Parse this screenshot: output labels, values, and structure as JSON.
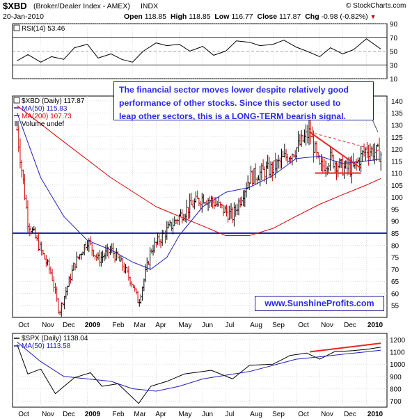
{
  "header": {
    "symbol": "$XBD",
    "name": "(Broker/Dealer Index - AMEX)",
    "exchange": "INDX",
    "credit": "© StockCharts.com",
    "date": "20-Jan-2010",
    "open_label": "Open",
    "open": "118.85",
    "high_label": "High",
    "high": "118.85",
    "low_label": "Low",
    "low": "116.77",
    "close_label": "Close",
    "close": "117.87",
    "chg_label": "Chg",
    "chg": "-0.98 (-0.82%)",
    "chg_icon": "down-triangle-icon",
    "down_color": "#cc0000"
  },
  "annotation": {
    "callout_lines": [
      "The financial sector moves lower despite relatively good",
      "performance of other stocks. Since this sector used to",
      "leap other sectors, this is a LONG-TERM bearish signal."
    ],
    "website": "www.SunshineProfits.com",
    "text_color": "#2a2aee"
  },
  "chart_data": [
    {
      "type": "line",
      "panel": "RSI",
      "legend": [
        {
          "label": "RSI(14) 53.46",
          "color": "#000000"
        }
      ],
      "y_ticks": [
        "90",
        "70",
        "50",
        "30",
        "10"
      ],
      "ylim": [
        10,
        90
      ],
      "reference_lines": [
        70,
        30
      ],
      "series": [
        {
          "name": "RSI(14)",
          "color": "#000000",
          "x": [
            "2008-10-01",
            "2008-10-15",
            "2008-11-01",
            "2008-11-15",
            "2008-12-01",
            "2008-12-15",
            "2009-01-01",
            "2009-01-15",
            "2009-02-01",
            "2009-02-15",
            "2009-03-01",
            "2009-03-15",
            "2009-04-01",
            "2009-04-15",
            "2009-05-01",
            "2009-05-15",
            "2009-06-01",
            "2009-06-15",
            "2009-07-01",
            "2009-07-15",
            "2009-08-01",
            "2009-08-15",
            "2009-09-01",
            "2009-09-15",
            "2009-10-01",
            "2009-10-15",
            "2009-11-01",
            "2009-11-15",
            "2009-12-01",
            "2009-12-15",
            "2010-01-01",
            "2010-01-20"
          ],
          "values": [
            36,
            45,
            34,
            42,
            38,
            55,
            60,
            40,
            46,
            38,
            34,
            50,
            62,
            58,
            60,
            50,
            57,
            44,
            50,
            65,
            63,
            58,
            60,
            66,
            56,
            50,
            42,
            55,
            46,
            52,
            68,
            53
          ]
        }
      ]
    },
    {
      "type": "ohlc",
      "panel": "XBD",
      "legend": [
        {
          "label": "$XBD (Daily) 117.87",
          "color": "#000000"
        },
        {
          "label": "MA(50) 115.83",
          "color": "#1f1fb8"
        },
        {
          "label": "MA(200) 107.73",
          "color": "#dd0000"
        },
        {
          "label": "Volume undef",
          "color": "#000000"
        }
      ],
      "x_ticks": [
        "Oct",
        "Nov",
        "Dec",
        "2009",
        "Feb",
        "Mar",
        "Apr",
        "May",
        "Jun",
        "Jul",
        "Aug",
        "Sep",
        "Oct",
        "Nov",
        "Dec",
        "2010"
      ],
      "y_ticks": [
        "140",
        "135",
        "130",
        "125",
        "120",
        "115",
        "110",
        "105",
        "100",
        "95",
        "90",
        "85",
        "80",
        "75",
        "70",
        "65",
        "60",
        "55"
      ],
      "ylim": [
        50,
        142
      ],
      "horizontal_line": 85,
      "series": [
        {
          "name": "$XBD (Daily)",
          "up_color": "#000000",
          "down_color": "#cc0000",
          "x": [
            "2008-10-01",
            "2008-10-15",
            "2008-11-01",
            "2008-11-15",
            "2008-11-25",
            "2008-12-15",
            "2009-01-01",
            "2009-01-15",
            "2009-02-01",
            "2009-02-15",
            "2009-03-01",
            "2009-03-09",
            "2009-03-25",
            "2009-04-15",
            "2009-05-01",
            "2009-05-15",
            "2009-06-01",
            "2009-06-15",
            "2009-07-01",
            "2009-07-10",
            "2009-08-01",
            "2009-08-15",
            "2009-09-01",
            "2009-09-15",
            "2009-10-01",
            "2009-10-19",
            "2009-11-01",
            "2009-11-15",
            "2009-12-01",
            "2009-12-15",
            "2010-01-01",
            "2010-01-20"
          ],
          "values": [
            128,
            90,
            78,
            68,
            52,
            72,
            82,
            74,
            78,
            72,
            64,
            56,
            78,
            86,
            92,
            96,
            100,
            98,
            94,
            92,
            108,
            110,
            112,
            116,
            120,
            127,
            112,
            116,
            112,
            112,
            120,
            117.87
          ]
        },
        {
          "name": "MA(50)",
          "color": "#1f1fb8",
          "x": [
            "2008-10-01",
            "2008-11-01",
            "2008-12-01",
            "2009-01-01",
            "2009-02-01",
            "2009-03-01",
            "2009-03-25",
            "2009-04-15",
            "2009-05-01",
            "2009-06-01",
            "2009-07-01",
            "2009-08-01",
            "2009-09-01",
            "2009-10-01",
            "2009-11-01",
            "2009-12-01",
            "2010-01-01",
            "2010-01-20"
          ],
          "values": [
            135,
            108,
            92,
            82,
            78,
            73,
            70,
            75,
            84,
            96,
            102,
            104,
            109,
            116,
            117,
            114,
            115,
            115.83
          ]
        },
        {
          "name": "MA(200)",
          "color": "#dd0000",
          "x": [
            "2008-10-01",
            "2008-12-01",
            "2009-02-01",
            "2009-04-01",
            "2009-05-01",
            "2009-06-01",
            "2009-07-01",
            "2009-08-01",
            "2009-09-01",
            "2009-10-01",
            "2009-11-01",
            "2009-12-01",
            "2010-01-01",
            "2010-01-20"
          ],
          "values": [
            138,
            123,
            108,
            96,
            92,
            88,
            84,
            84,
            87,
            92,
            97,
            101,
            105,
            107.73
          ]
        }
      ],
      "trendlines": [
        {
          "color": "#ee2222",
          "style": "solid",
          "from": [
            "2009-10-19",
            127
          ],
          "to": [
            "2009-12-25",
            112
          ]
        },
        {
          "color": "#ee2222",
          "style": "dashed",
          "from": [
            "2009-10-19",
            127
          ],
          "to": [
            "2010-01-20",
            119
          ]
        },
        {
          "color": "#ee2222",
          "style": "solid",
          "from": [
            "2009-10-26",
            110
          ],
          "to": [
            "2009-12-25",
            110
          ]
        }
      ]
    },
    {
      "type": "line",
      "panel": "SPX",
      "legend": [
        {
          "label": "$SPX (Daily) 1138.04",
          "color": "#000000"
        },
        {
          "label": "MA(50) 1113.58",
          "color": "#1f1fb8"
        }
      ],
      "x_ticks": [
        "Oct",
        "Nov",
        "Dec",
        "2009",
        "Feb",
        "Mar",
        "Apr",
        "May",
        "Jun",
        "Jul",
        "Aug",
        "Sep",
        "Oct",
        "Nov",
        "Dec",
        "2010"
      ],
      "y_ticks": [
        "1200",
        "1100",
        "1000",
        "900",
        "800",
        "700"
      ],
      "ylim": [
        650,
        1250
      ],
      "series": [
        {
          "name": "$SPX (Daily)",
          "color": "#000000",
          "x": [
            "2008-10-01",
            "2008-10-15",
            "2008-11-01",
            "2008-11-20",
            "2008-12-15",
            "2009-01-05",
            "2009-01-20",
            "2009-02-10",
            "2009-03-09",
            "2009-03-25",
            "2009-04-15",
            "2009-05-08",
            "2009-06-01",
            "2009-06-12",
            "2009-07-10",
            "2009-08-01",
            "2009-09-01",
            "2009-09-23",
            "2009-10-15",
            "2009-11-01",
            "2009-11-20",
            "2009-12-15",
            "2010-01-01",
            "2010-01-20"
          ],
          "values": [
            1160,
            920,
            960,
            760,
            890,
            930,
            820,
            840,
            680,
            820,
            860,
            920,
            940,
            950,
            880,
            990,
            1000,
            1070,
            1090,
            1040,
            1100,
            1110,
            1120,
            1138.04
          ]
        },
        {
          "name": "MA(50)",
          "color": "#1f1fb8",
          "x": [
            "2008-10-01",
            "2008-11-01",
            "2008-12-01",
            "2009-01-01",
            "2009-02-01",
            "2009-03-01",
            "2009-04-01",
            "2009-05-01",
            "2009-06-01",
            "2009-07-01",
            "2009-08-01",
            "2009-09-01",
            "2009-10-01",
            "2009-11-01",
            "2009-12-01",
            "2010-01-01",
            "2010-01-20"
          ],
          "values": [
            1180,
            1020,
            900,
            880,
            860,
            800,
            780,
            820,
            880,
            910,
            940,
            990,
            1040,
            1060,
            1080,
            1100,
            1113.58
          ]
        }
      ],
      "trendlines": [
        {
          "color": "#ee2222",
          "style": "solid",
          "from": [
            "2009-10-19",
            1100
          ],
          "to": [
            "2010-01-20",
            1170
          ]
        }
      ]
    }
  ]
}
